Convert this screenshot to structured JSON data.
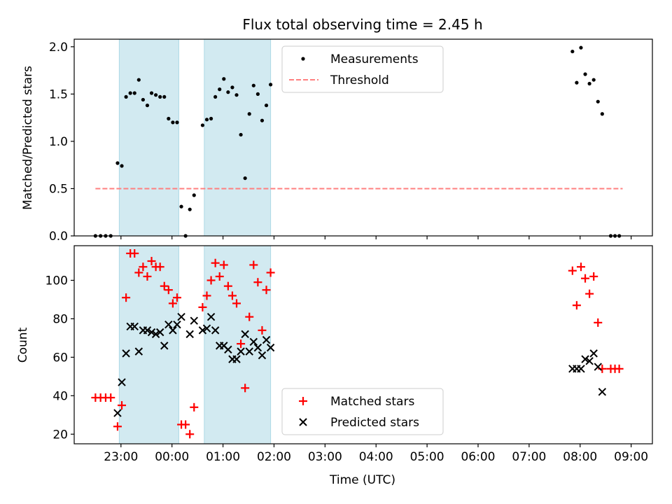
{
  "title": "Flux total observing time = 2.45 h",
  "chart_data": [
    {
      "type": "scatter",
      "ylabel": "Matched/Predicted stars",
      "ylim": [
        0,
        2.08
      ],
      "yticks": [
        "0.0",
        "0.5",
        "1.0",
        "1.5",
        "2.0"
      ],
      "ytick_values": [
        0,
        0.5,
        1.0,
        1.5,
        2.0
      ],
      "shaded_regions": [
        [
          "22:58",
          "00:08"
        ],
        [
          "00:38",
          "01:56"
        ]
      ],
      "shade_color": "#add8e6",
      "legend": {
        "placement": "top-center",
        "entries": [
          "Measurements",
          "Threshold"
        ]
      },
      "threshold": {
        "name": "Threshold",
        "value": 0.5,
        "x_range": [
          "22:30",
          "08:50"
        ],
        "color": "#ff7f7f",
        "style": "dashed"
      },
      "series": [
        {
          "name": "Measurements",
          "marker": "dot",
          "color": "#000000",
          "points": [
            [
              "22:30",
              0.0
            ],
            [
              "22:36",
              0.0
            ],
            [
              "22:42",
              0.0
            ],
            [
              "22:48",
              0.0
            ],
            [
              "22:56",
              0.77
            ],
            [
              "23:01",
              0.74
            ],
            [
              "23:06",
              1.47
            ],
            [
              "23:11",
              1.51
            ],
            [
              "23:16",
              1.51
            ],
            [
              "23:21",
              1.65
            ],
            [
              "23:26",
              1.44
            ],
            [
              "23:31",
              1.38
            ],
            [
              "23:36",
              1.51
            ],
            [
              "23:41",
              1.49
            ],
            [
              "23:46",
              1.47
            ],
            [
              "23:51",
              1.47
            ],
            [
              "23:56",
              1.24
            ],
            [
              "00:01",
              1.2
            ],
            [
              "00:06",
              1.2
            ],
            [
              "00:11",
              0.31
            ],
            [
              "00:16",
              0.0
            ],
            [
              "00:21",
              0.28
            ],
            [
              "00:26",
              0.43
            ],
            [
              "00:36",
              1.17
            ],
            [
              "00:41",
              1.23
            ],
            [
              "00:46",
              1.24
            ],
            [
              "00:51",
              1.47
            ],
            [
              "00:56",
              1.55
            ],
            [
              "01:01",
              1.66
            ],
            [
              "01:06",
              1.52
            ],
            [
              "01:11",
              1.57
            ],
            [
              "01:16",
              1.49
            ],
            [
              "01:21",
              1.07
            ],
            [
              "01:26",
              0.61
            ],
            [
              "01:31",
              1.29
            ],
            [
              "01:36",
              1.59
            ],
            [
              "01:41",
              1.5
            ],
            [
              "01:46",
              1.22
            ],
            [
              "01:51",
              1.38
            ],
            [
              "01:56",
              1.6
            ],
            [
              "07:51",
              1.95
            ],
            [
              "07:56",
              1.62
            ],
            [
              "08:01",
              1.99
            ],
            [
              "08:06",
              1.71
            ],
            [
              "08:11",
              1.61
            ],
            [
              "08:16",
              1.65
            ],
            [
              "08:21",
              1.42
            ],
            [
              "08:26",
              1.29
            ],
            [
              "08:36",
              0.0
            ],
            [
              "08:41",
              0.0
            ],
            [
              "08:46",
              0.0
            ]
          ]
        }
      ]
    },
    {
      "type": "scatter",
      "xlabel": "Time (UTC)",
      "ylabel": "Count",
      "ylim": [
        15,
        118
      ],
      "yticks": [
        "20",
        "40",
        "60",
        "80",
        "100"
      ],
      "ytick_values": [
        20,
        40,
        60,
        80,
        100
      ],
      "xlim": [
        "22:05",
        "09:25"
      ],
      "xticks": [
        "23:00",
        "00:00",
        "01:00",
        "02:00",
        "03:00",
        "04:00",
        "05:00",
        "06:00",
        "07:00",
        "08:00",
        "09:00"
      ],
      "shaded_regions": [
        [
          "22:58",
          "00:08"
        ],
        [
          "00:38",
          "01:56"
        ]
      ],
      "legend": {
        "placement": "bottom-center",
        "entries": [
          "Matched stars",
          "Predicted stars"
        ]
      },
      "series": [
        {
          "name": "Matched stars",
          "marker": "plus",
          "color": "#ff0000",
          "points": [
            [
              "22:30",
              39
            ],
            [
              "22:36",
              39
            ],
            [
              "22:42",
              39
            ],
            [
              "22:48",
              39
            ],
            [
              "22:56",
              24
            ],
            [
              "23:01",
              35
            ],
            [
              "23:06",
              91
            ],
            [
              "23:11",
              114
            ],
            [
              "23:16",
              114
            ],
            [
              "23:21",
              104
            ],
            [
              "23:26",
              107
            ],
            [
              "23:31",
              102
            ],
            [
              "23:36",
              110
            ],
            [
              "23:41",
              107
            ],
            [
              "23:46",
              107
            ],
            [
              "23:51",
              97
            ],
            [
              "23:56",
              95
            ],
            [
              "00:01",
              88
            ],
            [
              "00:06",
              91
            ],
            [
              "00:11",
              25
            ],
            [
              "00:16",
              25
            ],
            [
              "00:21",
              20
            ],
            [
              "00:26",
              34
            ],
            [
              "00:36",
              86
            ],
            [
              "00:41",
              92
            ],
            [
              "00:46",
              100
            ],
            [
              "00:51",
              109
            ],
            [
              "00:56",
              102
            ],
            [
              "01:01",
              108
            ],
            [
              "01:06",
              97
            ],
            [
              "01:11",
              92
            ],
            [
              "01:16",
              88
            ],
            [
              "01:21",
              67
            ],
            [
              "01:26",
              44
            ],
            [
              "01:31",
              81
            ],
            [
              "01:36",
              108
            ],
            [
              "01:41",
              99
            ],
            [
              "01:46",
              74
            ],
            [
              "01:51",
              95
            ],
            [
              "01:56",
              104
            ],
            [
              "07:51",
              105
            ],
            [
              "07:56",
              87
            ],
            [
              "08:01",
              107
            ],
            [
              "08:06",
              101
            ],
            [
              "08:11",
              93
            ],
            [
              "08:16",
              102
            ],
            [
              "08:21",
              78
            ],
            [
              "08:26",
              54
            ],
            [
              "08:36",
              54
            ],
            [
              "08:41",
              54
            ],
            [
              "08:46",
              54
            ]
          ]
        },
        {
          "name": "Predicted stars",
          "marker": "x",
          "color": "#000000",
          "points": [
            [
              "22:56",
              31
            ],
            [
              "23:01",
              47
            ],
            [
              "23:06",
              62
            ],
            [
              "23:11",
              76
            ],
            [
              "23:16",
              76
            ],
            [
              "23:21",
              63
            ],
            [
              "23:26",
              74
            ],
            [
              "23:31",
              74
            ],
            [
              "23:36",
              73
            ],
            [
              "23:41",
              72
            ],
            [
              "23:46",
              73
            ],
            [
              "23:51",
              66
            ],
            [
              "23:56",
              77
            ],
            [
              "00:01",
              74
            ],
            [
              "00:06",
              77
            ],
            [
              "00:11",
              81
            ],
            [
              "00:21",
              72
            ],
            [
              "00:26",
              79
            ],
            [
              "00:36",
              74
            ],
            [
              "00:41",
              75
            ],
            [
              "00:46",
              81
            ],
            [
              "00:51",
              74
            ],
            [
              "00:56",
              66
            ],
            [
              "01:01",
              66
            ],
            [
              "01:06",
              64
            ],
            [
              "01:11",
              59
            ],
            [
              "01:16",
              59
            ],
            [
              "01:21",
              63
            ],
            [
              "01:26",
              72
            ],
            [
              "01:31",
              63
            ],
            [
              "01:36",
              68
            ],
            [
              "01:41",
              65
            ],
            [
              "01:46",
              61
            ],
            [
              "01:51",
              69
            ],
            [
              "01:56",
              65
            ],
            [
              "07:51",
              54
            ],
            [
              "07:56",
              54
            ],
            [
              "08:01",
              54
            ],
            [
              "08:06",
              59
            ],
            [
              "08:11",
              58
            ],
            [
              "08:16",
              62
            ],
            [
              "08:21",
              55
            ],
            [
              "08:26",
              42
            ]
          ]
        }
      ]
    }
  ]
}
